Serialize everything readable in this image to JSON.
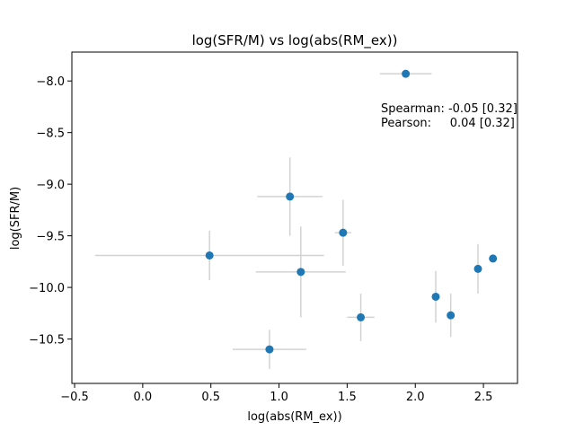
{
  "chart_data": {
    "type": "scatter",
    "title": "log(SFR/M) vs log(abs(RM_ex))",
    "xlabel": "log(abs(RM_ex))",
    "ylabel": "log(SFR/M)",
    "xlim": [
      -0.52,
      2.75
    ],
    "ylim": [
      -10.93,
      -7.72
    ],
    "xticks": [
      -0.5,
      0.0,
      0.5,
      1.0,
      1.5,
      2.0,
      2.5
    ],
    "xtick_labels": [
      "−0.5",
      "0.0",
      "0.5",
      "1.0",
      "1.5",
      "2.0",
      "2.5"
    ],
    "yticks": [
      -10.5,
      -10.0,
      -9.5,
      -9.0,
      -8.5,
      -8.0
    ],
    "ytick_labels": [
      "−10.5",
      "−10.0",
      "−9.5",
      "−9.0",
      "−8.5",
      "−8.0"
    ],
    "grid": false,
    "marker_color": "#1f77b4",
    "errorbar_color": "#d3d3d3",
    "points": [
      {
        "x": 1.93,
        "y": -7.93,
        "xerr": 0.19,
        "yerr": 0.0
      },
      {
        "x": 1.08,
        "y": -9.12,
        "xerr": 0.24,
        "yerr": 0.38
      },
      {
        "x": 1.47,
        "y": -9.47,
        "xerr": 0.06,
        "yerr": 0.32
      },
      {
        "x": 0.49,
        "y": -9.69,
        "xerr": 0.84,
        "yerr": 0.24
      },
      {
        "x": 1.16,
        "y": -9.85,
        "xerr": 0.33,
        "yerr": 0.44
      },
      {
        "x": 1.6,
        "y": -10.29,
        "xerr": 0.1,
        "yerr": 0.23
      },
      {
        "x": 0.93,
        "y": -10.6,
        "xerr": 0.27,
        "yerr": 0.19
      },
      {
        "x": 2.15,
        "y": -10.09,
        "xerr": 0.0,
        "yerr": 0.25
      },
      {
        "x": 2.26,
        "y": -10.27,
        "xerr": 0.0,
        "yerr": 0.21
      },
      {
        "x": 2.46,
        "y": -9.82,
        "xerr": 0.0,
        "yerr": 0.24
      },
      {
        "x": 2.57,
        "y": -9.72,
        "xerr": 0.0,
        "yerr": 0.0
      }
    ],
    "annotations": [
      "Spearman: -0.05 [0.32]",
      "Pearson:     0.04 [0.32]"
    ]
  }
}
